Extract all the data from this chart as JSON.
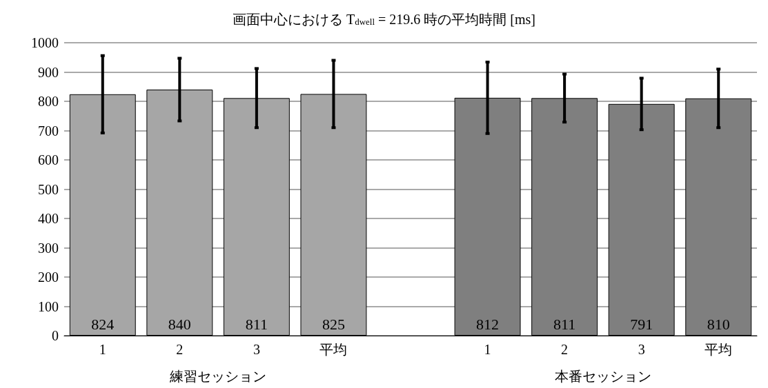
{
  "chart_data": {
    "type": "bar",
    "title": "画面中心における T$_{dwell}$ = 219.6 時の平均時間 [ms]",
    "categories": [
      "1",
      "2",
      "3",
      "平均",
      null,
      "1",
      "2",
      "3",
      "平均"
    ],
    "values": [
      824,
      840,
      811,
      825,
      null,
      812,
      811,
      791,
      810
    ],
    "colors": [
      "#a6a6a6",
      "#a6a6a6",
      "#a6a6a6",
      "#a6a6a6",
      null,
      "#7f7f7f",
      "#7f7f7f",
      "#7f7f7f",
      "#7f7f7f"
    ],
    "errors": [
      132,
      107,
      101,
      115,
      null,
      122,
      82,
      88,
      100
    ],
    "annotations": [
      "練習セッション",
      "本番セッション"
    ],
    "ylim": [
      0,
      1000
    ],
    "yticks": [
      0,
      100,
      200,
      300,
      400,
      500,
      600,
      700,
      800,
      900,
      1000
    ],
    "grid": "y",
    "data_labels": true
  }
}
